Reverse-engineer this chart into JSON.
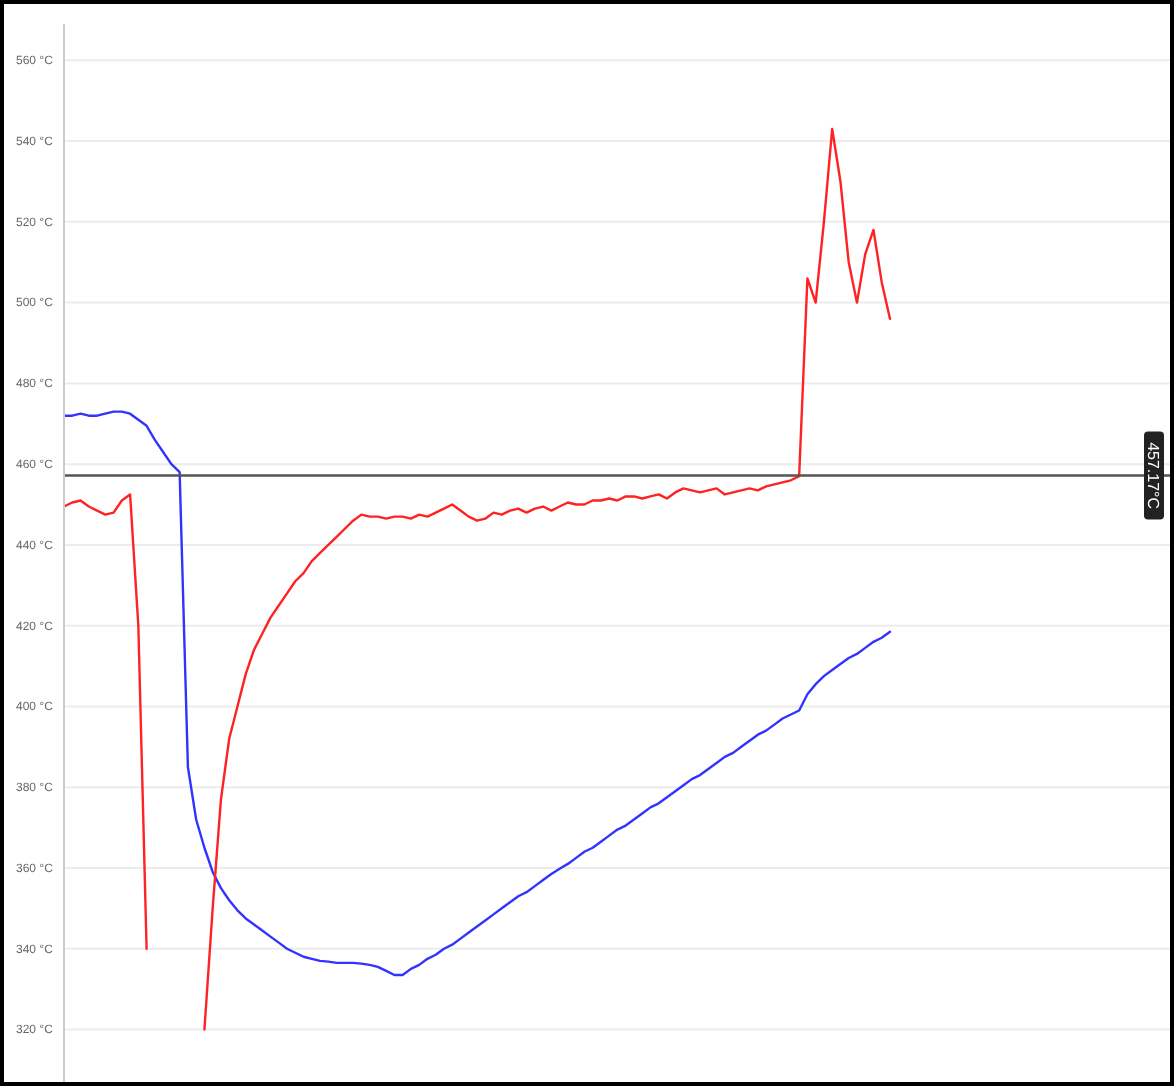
{
  "chart_data": {
    "type": "line",
    "categories": [
      null,
      null,
      null,
      null,
      null,
      null,
      null,
      null,
      null,
      null,
      null,
      null,
      null,
      null,
      null,
      null,
      null,
      null,
      null,
      null,
      null,
      null,
      null,
      null,
      null,
      null,
      null,
      null,
      null,
      null,
      null,
      null,
      null,
      null,
      null,
      null,
      null,
      null,
      null,
      null,
      null,
      null,
      null,
      null,
      null,
      null,
      null,
      null,
      null,
      null,
      null,
      null,
      null,
      null,
      null,
      null,
      null,
      null,
      null,
      null,
      null,
      null,
      null,
      null,
      null,
      null,
      null,
      null,
      null,
      null,
      null,
      null,
      null,
      null,
      null,
      null,
      null,
      null,
      null,
      null,
      null,
      null,
      null,
      null,
      null,
      null,
      null,
      null,
      null,
      null,
      null,
      null,
      null,
      null,
      null,
      null,
      null,
      null,
      null,
      null,
      null
    ],
    "series": [
      {
        "color": "#3333ff",
        "values": [
          472,
          472,
          472.5,
          472,
          472,
          472.5,
          473,
          473,
          472.5,
          471,
          469.5,
          466,
          463,
          460,
          458,
          385,
          372,
          365,
          359,
          355,
          352,
          349.5,
          347.5,
          346,
          344.5,
          343,
          341.5,
          340,
          339,
          338,
          337.5,
          337,
          336.8,
          336.5,
          336.5,
          336.5,
          336.3,
          336,
          335.5,
          334.5,
          333.5,
          333.5,
          335,
          336,
          337.5,
          338.5,
          340,
          341,
          342.5,
          344,
          345.5,
          347,
          348.5,
          350,
          351.5,
          353,
          354,
          355.5,
          357,
          358.5,
          359.8,
          361,
          362.5,
          364,
          365,
          366.5,
          368,
          369.5,
          370.5,
          372,
          373.5,
          375,
          376,
          377.5,
          379,
          380.5,
          382,
          383,
          384.5,
          386,
          387.5,
          388.5,
          390,
          391.5,
          393,
          394,
          395.5,
          397,
          398,
          399,
          403,
          405.5,
          407.5,
          409,
          410.5,
          412,
          413,
          414.5,
          416,
          417,
          418.5
        ]
      },
      {
        "color": "#ff2222",
        "values": [
          449.5,
          450.5,
          451,
          449.5,
          448.5,
          447.5,
          448,
          451,
          452.5,
          420,
          340,
          null,
          null,
          null,
          null,
          null,
          null,
          320,
          350,
          377,
          392,
          400,
          408,
          414,
          418,
          422,
          425,
          428,
          431,
          433,
          436,
          438,
          440,
          442,
          444,
          446,
          447.5,
          447,
          447,
          446.5,
          447,
          447,
          446.5,
          447.5,
          447,
          448,
          449,
          450,
          448.5,
          447,
          446,
          446.5,
          448,
          447.5,
          448.5,
          449,
          448,
          449,
          449.5,
          448.5,
          449.5,
          450.5,
          450,
          450,
          451,
          451,
          451.5,
          451,
          452,
          452,
          451.5,
          452,
          452.5,
          451.5,
          453,
          454,
          453.5,
          453,
          453.5,
          454,
          452.5,
          453,
          453.5,
          454,
          453.5,
          454.5,
          455,
          455.5,
          456,
          457,
          506,
          500,
          520,
          543,
          530,
          510,
          500,
          512,
          518,
          505,
          496
        ]
      }
    ],
    "ylim": [
      306,
      569
    ],
    "yticks": [
      {
        "value": 320,
        "label": "320 °C"
      },
      {
        "value": 340,
        "label": "340 °C"
      },
      {
        "value": 360,
        "label": "360 °C"
      },
      {
        "value": 380,
        "label": "380 °C"
      },
      {
        "value": 400,
        "label": "400 °C"
      },
      {
        "value": 420,
        "label": "420 °C"
      },
      {
        "value": 440,
        "label": "440 °C"
      },
      {
        "value": 460,
        "label": "460 °C"
      },
      {
        "value": 480,
        "label": "480 °C"
      },
      {
        "value": 500,
        "label": "500 °C"
      },
      {
        "value": 520,
        "label": "520 °C"
      },
      {
        "value": 540,
        "label": "540 °C"
      },
      {
        "value": 560,
        "label": "560 °C"
      }
    ],
    "grid": "y",
    "ref_lines": [
      {
        "axis": "y",
        "value": 457.17,
        "label": "457.17°C",
        "color": "#555555"
      }
    ]
  }
}
